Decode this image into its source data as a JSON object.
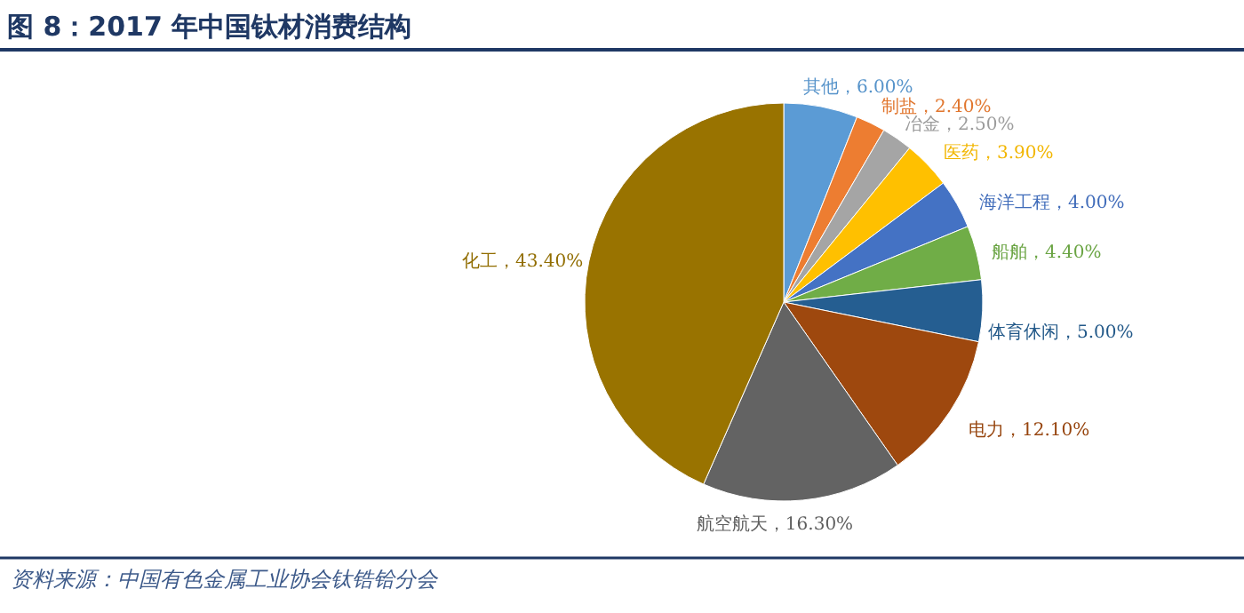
{
  "chart_data": {
    "type": "pie",
    "title": "图 8：2017 年中国钛材消费结构",
    "categories": [
      "其他",
      "制盐",
      "冶金",
      "医药",
      "海洋工程",
      "船舶",
      "体育休闲",
      "电力",
      "航空航天",
      "化工"
    ],
    "values": [
      6.0,
      2.4,
      2.5,
      3.9,
      4.0,
      4.4,
      5.0,
      12.1,
      16.3,
      43.4
    ],
    "value_labels": [
      "6.00%",
      "2.40%",
      "2.50%",
      "3.90%",
      "4.00%",
      "4.40%",
      "5.00%",
      "12.10%",
      "16.30%",
      "43.40%"
    ],
    "colors": [
      "#5b9bd5",
      "#ed7d31",
      "#a5a5a5",
      "#ffc000",
      "#4472c4",
      "#70ad47",
      "#255e91",
      "#9e480e",
      "#636363",
      "#997300"
    ],
    "annotations": [
      "资料来源：中国有色金属工业协会钛锆铪分会"
    ]
  }
}
